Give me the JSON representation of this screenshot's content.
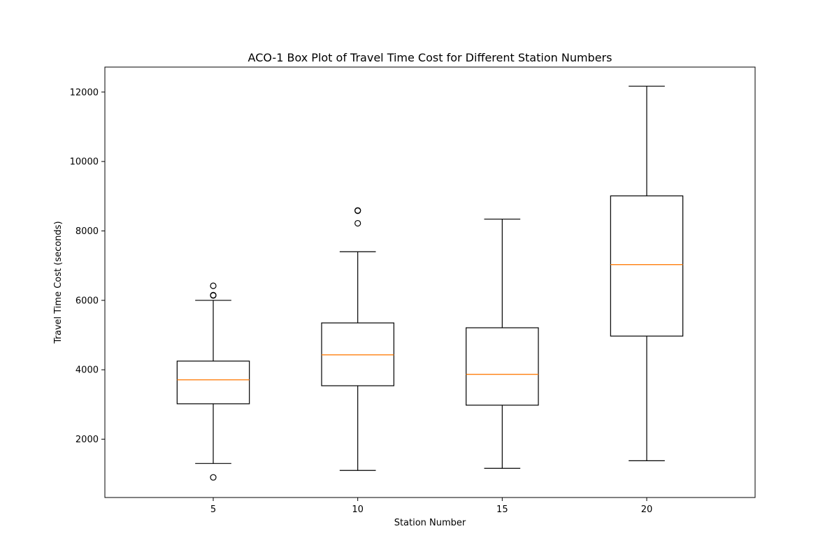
{
  "chart_data": {
    "type": "box",
    "title": "ACO-1 Box Plot of Travel Time Cost for Different Station Numbers",
    "xlabel": "Station Number",
    "ylabel": "Travel Time Cost (seconds)",
    "ylim": [
      320,
      12720
    ],
    "y_ticks": [
      2000,
      4000,
      6000,
      8000,
      10000,
      12000
    ],
    "grid": false,
    "legend": "none",
    "colors": {
      "box": "#000000",
      "median": "#ff7f0e",
      "background": "#ffffff"
    },
    "categories": [
      "5",
      "10",
      "15",
      "20"
    ],
    "boxes": [
      {
        "category": "5",
        "whisker_low": 1300,
        "q1": 3020,
        "median": 3710,
        "q3": 4250,
        "whisker_high": 6000,
        "outliers": [
          6420,
          6140,
          6150,
          900
        ]
      },
      {
        "category": "10",
        "whisker_low": 1100,
        "q1": 3540,
        "median": 4430,
        "q3": 5350,
        "whisker_high": 7400,
        "outliers": [
          8580,
          8590,
          8220
        ]
      },
      {
        "category": "15",
        "whisker_low": 1160,
        "q1": 2980,
        "median": 3870,
        "q3": 5210,
        "whisker_high": 8340,
        "outliers": []
      },
      {
        "category": "20",
        "whisker_low": 1380,
        "q1": 4970,
        "median": 7030,
        "q3": 9010,
        "whisker_high": 12170,
        "outliers": []
      }
    ]
  }
}
